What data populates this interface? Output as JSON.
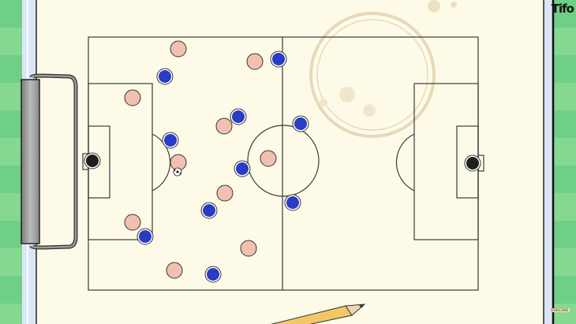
{
  "logo": "Tifo",
  "subscribe_label": "SUBSCRIBE",
  "colors": {
    "paper": "#fdfbe8",
    "pitch_lines": "#3a3a3a",
    "team_pink": "#f2c0b0",
    "team_blue": "#2a3cc4",
    "goalkeeper": "#1e1e1e",
    "grass": "#6fcf86"
  },
  "teams": [
    {
      "id": "pink",
      "players": 10
    },
    {
      "id": "blue",
      "players": 10
    }
  ],
  "icons": [
    "clipboard-clip-icon",
    "pencil-icon",
    "coffee-stain",
    "football-icon"
  ]
}
